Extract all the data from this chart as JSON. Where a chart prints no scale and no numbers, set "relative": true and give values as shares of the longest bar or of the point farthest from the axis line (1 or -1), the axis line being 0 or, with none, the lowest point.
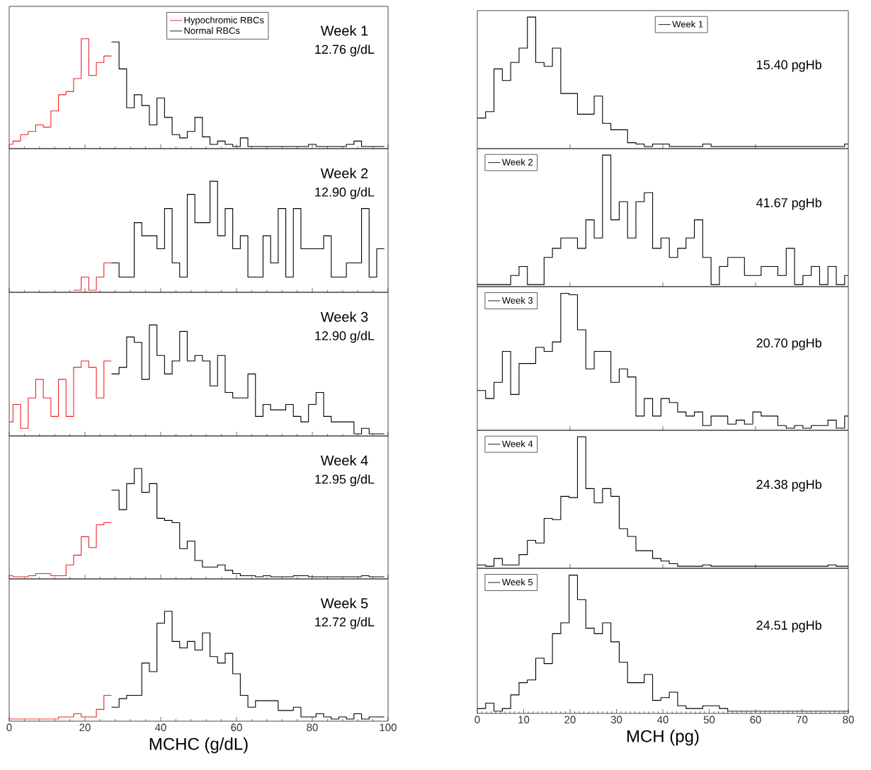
{
  "chart_data": [
    {
      "type": "step",
      "relative": true,
      "series": [
        {
          "name": "Hypochromic RBCs",
          "color": "#ee2222",
          "x": [
            0,
            1,
            3,
            5,
            7,
            9,
            11,
            13,
            15,
            17,
            19,
            21,
            23,
            25,
            27
          ],
          "values": [
            0.02,
            0.05,
            0.11,
            0.14,
            0.2,
            0.18,
            0.33,
            0.48,
            0.51,
            0.63,
            1,
            0.66,
            0.78,
            0.84,
            0.84
          ]
        },
        {
          "name": "Normal RBCs",
          "color": "#000000",
          "x": [
            27,
            29,
            31,
            33,
            35,
            37,
            39,
            41,
            43,
            45,
            47,
            49,
            51,
            53,
            55,
            57,
            59,
            61,
            63,
            65,
            67,
            69,
            71,
            73,
            75,
            77,
            79,
            81,
            83,
            85,
            87,
            89,
            91,
            93,
            95,
            97,
            99
          ],
          "values": [
            0.97,
            0.72,
            0.36,
            0.48,
            0.38,
            0.2,
            0.45,
            0.27,
            0.11,
            0.08,
            0.14,
            0.27,
            0.09,
            0.02,
            0.05,
            0.02,
            0,
            0.08,
            0,
            0,
            0,
            0,
            0,
            0,
            0,
            0,
            0.02,
            0,
            0,
            0,
            0,
            0.02,
            0.05,
            0,
            0,
            0,
            0
          ]
        }
      ],
      "legend": "top",
      "xlim": [
        0,
        100
      ],
      "xticks": [
        0,
        {
          "value": 4,
          "label": null
        },
        {
          "value": 8,
          "label": null
        },
        {
          "value": 12,
          "label": null
        },
        {
          "value": 16,
          "label": null
        },
        20,
        {
          "value": 24,
          "label": null
        },
        {
          "value": 28,
          "label": null
        },
        {
          "value": 32,
          "label": null
        },
        {
          "value": 36,
          "label": null
        },
        40,
        {
          "value": 44,
          "label": null
        },
        {
          "value": 48,
          "label": null
        },
        {
          "value": 52,
          "label": null
        },
        {
          "value": 56,
          "label": null
        },
        60,
        {
          "value": 64,
          "label": null
        },
        {
          "value": 68,
          "label": null
        },
        {
          "value": 72,
          "label": null
        },
        {
          "value": 76,
          "label": null
        },
        80,
        {
          "value": 84,
          "label": null
        },
        {
          "value": 88,
          "label": null
        },
        {
          "value": 92,
          "label": null
        },
        {
          "value": 96,
          "label": null
        },
        100
      ],
      "tick_labels": false,
      "annotations": [
        "Week 1",
        "12.76 g/dL"
      ]
    },
    {
      "type": "step",
      "relative": true,
      "series": [
        {
          "name": "Week 1",
          "color": "#000000",
          "x": [
            0,
            1.8,
            3.6,
            5.4,
            7.2,
            9,
            10.8,
            12.6,
            14.4,
            16.2,
            18,
            19.8,
            21.6,
            23.4,
            25.2,
            27,
            28.8,
            30.6,
            32.4,
            34.2,
            36,
            37.8,
            39.6,
            41.4,
            43.2,
            45,
            46.8,
            48.6,
            50.4,
            52.2,
            54,
            55.8,
            57.6,
            59.4,
            61.2,
            63,
            64.8,
            66.6,
            68.4,
            70.2,
            72,
            73.8,
            75.6,
            77.4,
            79.2,
            80
          ],
          "values": [
            0.22,
            0.27,
            0.6,
            0.51,
            0.65,
            0.76,
            1,
            0.65,
            0.62,
            0.76,
            0.41,
            0.41,
            0.25,
            0.25,
            0.39,
            0.18,
            0.13,
            0.13,
            0.03,
            0.02,
            0,
            0.02,
            0.02,
            0,
            0,
            0,
            0,
            0.02,
            0,
            0,
            0,
            0,
            0,
            0,
            0,
            0,
            0,
            0,
            0,
            0,
            0,
            0,
            0,
            0,
            0.02,
            0.02
          ]
        }
      ],
      "legend": "top",
      "xlim": [
        0,
        80
      ],
      "xticks": [
        20,
        40,
        60
      ],
      "tick_labels": false,
      "annotations": [
        "15.40 pgHb"
      ]
    },
    {
      "type": "step",
      "relative": true,
      "series": [
        {
          "color": "#ee2222",
          "x": [
            17,
            19,
            21,
            23,
            25,
            27
          ],
          "values": [
            0,
            0.12,
            0,
            0.12,
            0.25,
            0.25
          ]
        },
        {
          "color": "#000000",
          "x": [
            27,
            29,
            31,
            33,
            35,
            37,
            39,
            41,
            43,
            45,
            47,
            49,
            51,
            53,
            55,
            57,
            59,
            61,
            63,
            65,
            67,
            69,
            71,
            73,
            75,
            77,
            79,
            81,
            83,
            85,
            87,
            89,
            91,
            93,
            95,
            97,
            99
          ],
          "values": [
            0.25,
            0.12,
            0.12,
            0.62,
            0.5,
            0.5,
            0.38,
            0.75,
            0.25,
            0.12,
            0.88,
            0.62,
            0.62,
            1,
            0.5,
            0.75,
            0.38,
            0.5,
            0.12,
            0.12,
            0.5,
            0.25,
            0.75,
            0.12,
            0.75,
            0.38,
            0.38,
            0.38,
            0.5,
            0.12,
            0.12,
            0.25,
            0.25,
            0.75,
            0.12,
            0.38,
            0.38
          ]
        }
      ],
      "xlim": [
        0,
        100
      ],
      "xticks": [
        0,
        {
          "value": 4,
          "label": null
        },
        {
          "value": 8,
          "label": null
        },
        {
          "value": 12,
          "label": null
        },
        {
          "value": 16,
          "label": null
        },
        20,
        {
          "value": 24,
          "label": null
        },
        {
          "value": 28,
          "label": null
        },
        {
          "value": 32,
          "label": null
        },
        {
          "value": 36,
          "label": null
        },
        40,
        {
          "value": 44,
          "label": null
        },
        {
          "value": 48,
          "label": null
        },
        {
          "value": 52,
          "label": null
        },
        {
          "value": 56,
          "label": null
        },
        60,
        {
          "value": 64,
          "label": null
        },
        {
          "value": 68,
          "label": null
        },
        {
          "value": 72,
          "label": null
        },
        {
          "value": 76,
          "label": null
        },
        80,
        {
          "value": 84,
          "label": null
        },
        {
          "value": 88,
          "label": null
        },
        {
          "value": 92,
          "label": null
        },
        {
          "value": 96,
          "label": null
        },
        100
      ],
      "tick_labels": false,
      "annotations": [
        "Week 2",
        "12.90 g/dL"
      ]
    },
    {
      "type": "step",
      "relative": true,
      "series": [
        {
          "name": "Week 2",
          "color": "#000000",
          "x": [
            0,
            1.8,
            3.6,
            5.4,
            7.2,
            9,
            10.8,
            12.6,
            14.4,
            16.2,
            18,
            19.8,
            21.6,
            23.4,
            25.2,
            27,
            28.8,
            30.6,
            32.4,
            34.2,
            36,
            37.8,
            39.6,
            41.4,
            43.2,
            45,
            46.8,
            48.6,
            50.4,
            52.2,
            54,
            55.8,
            57.6,
            59.4,
            61.2,
            63,
            64.8,
            66.6,
            68.4,
            70.2,
            72,
            73.8,
            75.6,
            77.4,
            79.2,
            80
          ],
          "values": [
            0,
            0,
            0,
            0,
            0.07,
            0.14,
            0,
            0,
            0.21,
            0.28,
            0.36,
            0.36,
            0.28,
            0.5,
            0.36,
            1,
            0.5,
            0.64,
            0.36,
            0.64,
            0.71,
            0.28,
            0.36,
            0.21,
            0.28,
            0.36,
            0.5,
            0.21,
            0,
            0.14,
            0.21,
            0.21,
            0.07,
            0.07,
            0.14,
            0.14,
            0.07,
            0.28,
            0,
            0.07,
            0.14,
            0,
            0.14,
            0,
            0.07,
            0.07
          ]
        }
      ],
      "legend": "top left",
      "xlim": [
        0,
        80
      ],
      "xticks": [
        20,
        40,
        60
      ],
      "tick_labels": false,
      "annotations": [
        "41.67 pgHb"
      ]
    },
    {
      "type": "step",
      "relative": true,
      "series": [
        {
          "color": "#ee2222",
          "x": [
            0,
            1,
            3,
            5,
            7,
            9,
            11,
            13,
            15,
            17,
            19,
            21,
            23,
            25,
            27
          ],
          "values": [
            0.11,
            0.27,
            0.05,
            0.33,
            0.5,
            0.33,
            0.16,
            0.5,
            0.16,
            0.61,
            0.67,
            0.61,
            0.33,
            0.67,
            0.67
          ]
        },
        {
          "color": "#000000",
          "x": [
            27,
            29,
            31,
            33,
            35,
            37,
            39,
            41,
            43,
            45,
            47,
            49,
            51,
            53,
            55,
            57,
            59,
            61,
            63,
            65,
            67,
            69,
            71,
            73,
            75,
            77,
            79,
            81,
            83,
            85,
            87,
            89,
            91,
            93,
            95,
            97,
            99
          ],
          "values": [
            0.55,
            0.61,
            0.89,
            0.84,
            0.5,
            1,
            0.72,
            0.55,
            0.67,
            0.94,
            0.67,
            0.72,
            0.67,
            0.44,
            0.72,
            0.38,
            0.33,
            0.33,
            0.55,
            0.16,
            0.27,
            0.22,
            0.22,
            0.27,
            0.16,
            0.11,
            0.27,
            0.38,
            0.16,
            0.11,
            0.11,
            0.11,
            0,
            0.05,
            0,
            0,
            0
          ]
        }
      ],
      "xlim": [
        0,
        100
      ],
      "xticks": [
        0,
        {
          "value": 4,
          "label": null
        },
        {
          "value": 8,
          "label": null
        },
        {
          "value": 12,
          "label": null
        },
        {
          "value": 16,
          "label": null
        },
        20,
        {
          "value": 24,
          "label": null
        },
        {
          "value": 28,
          "label": null
        },
        {
          "value": 32,
          "label": null
        },
        {
          "value": 36,
          "label": null
        },
        40,
        {
          "value": 44,
          "label": null
        },
        {
          "value": 48,
          "label": null
        },
        {
          "value": 52,
          "label": null
        },
        {
          "value": 56,
          "label": null
        },
        60,
        {
          "value": 64,
          "label": null
        },
        {
          "value": 68,
          "label": null
        },
        {
          "value": 72,
          "label": null
        },
        {
          "value": 76,
          "label": null
        },
        80,
        {
          "value": 84,
          "label": null
        },
        {
          "value": 88,
          "label": null
        },
        {
          "value": 92,
          "label": null
        },
        {
          "value": 96,
          "label": null
        },
        100
      ],
      "tick_labels": false,
      "annotations": [
        "Week 3",
        "12.90 g/dL"
      ]
    },
    {
      "type": "step",
      "relative": true,
      "series": [
        {
          "name": "Week 3",
          "color": "#000000",
          "x": [
            0,
            1.8,
            3.6,
            5.4,
            7.2,
            9,
            10.8,
            12.6,
            14.4,
            16.2,
            18,
            19.8,
            21.6,
            23.4,
            25.2,
            27,
            28.8,
            30.6,
            32.4,
            34.2,
            36,
            37.8,
            39.6,
            41.4,
            43.2,
            45,
            46.8,
            48.6,
            50.4,
            52.2,
            54,
            55.8,
            57.6,
            59.4,
            61.2,
            63,
            64.8,
            66.6,
            68.4,
            70.2,
            72,
            73.8,
            75.6,
            77.4,
            79.2,
            80
          ],
          "values": [
            0.28,
            0.22,
            0.34,
            0.57,
            0.25,
            0.48,
            0.48,
            0.6,
            0.57,
            0.64,
            1,
            0.99,
            0.73,
            0.44,
            0.57,
            0.57,
            0.34,
            0.44,
            0.38,
            0.09,
            0.22,
            0.09,
            0.22,
            0.19,
            0.12,
            0.09,
            0.12,
            0.02,
            0.09,
            0.09,
            0.03,
            0.06,
            0.03,
            0.12,
            0.09,
            0.09,
            0.02,
            0,
            0.02,
            0,
            0.02,
            0.02,
            0.06,
            0,
            0.09,
            0.09
          ]
        }
      ],
      "legend": "top left",
      "xlim": [
        0,
        80
      ],
      "xticks": [
        20,
        40,
        60
      ],
      "tick_labels": false,
      "annotations": [
        "20.70 pgHb"
      ]
    },
    {
      "type": "step",
      "relative": true,
      "series": [
        {
          "color": "#ee2222",
          "x": [
            0,
            1,
            3,
            5,
            7,
            9,
            11,
            13,
            15,
            17,
            19,
            21,
            23,
            25,
            27
          ],
          "values": [
            0.01,
            0,
            0,
            0.01,
            0.03,
            0.03,
            0.01,
            0.01,
            0.11,
            0.2,
            0.37,
            0.27,
            0.48,
            0.5,
            0.5
          ]
        },
        {
          "color": "#000000",
          "x": [
            27,
            29,
            31,
            33,
            35,
            37,
            39,
            41,
            43,
            45,
            47,
            49,
            51,
            53,
            55,
            57,
            59,
            61,
            63,
            65,
            67,
            69,
            71,
            73,
            75,
            77,
            79,
            81,
            83,
            85,
            87,
            89,
            91,
            93,
            95,
            97,
            99
          ],
          "values": [
            0.8,
            0.62,
            0.86,
            1,
            0.78,
            0.86,
            0.54,
            0.52,
            0.5,
            0.26,
            0.33,
            0.15,
            0.09,
            0.09,
            0.11,
            0.06,
            0.03,
            0.01,
            0.01,
            0,
            0.01,
            0,
            0,
            0,
            0.01,
            0.01,
            0,
            0,
            0,
            0,
            0,
            0,
            0,
            0.01,
            0,
            0,
            0
          ]
        }
      ],
      "xlim": [
        0,
        100
      ],
      "xticks": [
        0,
        {
          "value": 4,
          "label": null
        },
        {
          "value": 8,
          "label": null
        },
        {
          "value": 12,
          "label": null
        },
        {
          "value": 16,
          "label": null
        },
        20,
        {
          "value": 24,
          "label": null
        },
        {
          "value": 28,
          "label": null
        },
        {
          "value": 32,
          "label": null
        },
        {
          "value": 36,
          "label": null
        },
        40,
        {
          "value": 44,
          "label": null
        },
        {
          "value": 48,
          "label": null
        },
        {
          "value": 52,
          "label": null
        },
        {
          "value": 56,
          "label": null
        },
        60,
        {
          "value": 64,
          "label": null
        },
        {
          "value": 68,
          "label": null
        },
        {
          "value": 72,
          "label": null
        },
        {
          "value": 76,
          "label": null
        },
        80,
        {
          "value": 84,
          "label": null
        },
        {
          "value": 88,
          "label": null
        },
        {
          "value": 92,
          "label": null
        },
        {
          "value": 96,
          "label": null
        },
        100
      ],
      "tick_labels": false,
      "annotations": [
        "Week 4",
        "12.95 g/dL"
      ]
    },
    {
      "type": "step",
      "relative": true,
      "series": [
        {
          "name": "Week 4",
          "color": "#000000",
          "x": [
            0,
            1.8,
            3.6,
            5.4,
            7.2,
            9,
            10.8,
            12.6,
            14.4,
            16.2,
            18,
            19.8,
            21.6,
            23.4,
            25.2,
            27,
            28.8,
            30.6,
            32.4,
            34.2,
            36,
            37.8,
            39.6,
            41.4,
            43.2,
            45,
            46.8,
            48.6,
            50.4,
            52.2,
            54,
            55.8,
            57.6,
            59.4,
            61.2,
            63,
            64.8,
            66.6,
            68.4,
            70.2,
            72,
            73.8,
            75.6,
            77.4,
            79.2,
            80
          ],
          "values": [
            0.01,
            0,
            0.06,
            0.01,
            0.01,
            0.09,
            0.2,
            0.18,
            0.37,
            0.36,
            0.54,
            0.53,
            1,
            0.6,
            0.49,
            0.6,
            0.54,
            0.29,
            0.23,
            0.12,
            0.12,
            0.06,
            0.04,
            0.02,
            0,
            0,
            0,
            0.01,
            0,
            0,
            0,
            0,
            0,
            0,
            0,
            0,
            0,
            0,
            0,
            0,
            0,
            0,
            0.01,
            0,
            0,
            0
          ]
        }
      ],
      "legend": "top left",
      "xlim": [
        0,
        80
      ],
      "xticks": [
        20,
        40,
        60
      ],
      "tick_labels": false,
      "annotations": [
        "24.38 pgHb"
      ]
    },
    {
      "type": "step",
      "relative": true,
      "series": [
        {
          "color": "#ee2222",
          "x": [
            0,
            1,
            3,
            5,
            7,
            9,
            11,
            13,
            15,
            17,
            19,
            21,
            23,
            25,
            27
          ],
          "values": [
            0,
            0,
            0,
            0,
            0,
            0,
            0,
            0.02,
            0.02,
            0.05,
            0.02,
            0.02,
            0.09,
            0.22,
            0.22
          ]
        },
        {
          "color": "#000000",
          "x": [
            27,
            29,
            31,
            33,
            35,
            37,
            39,
            41,
            43,
            45,
            47,
            49,
            51,
            53,
            55,
            57,
            59,
            61,
            63,
            65,
            67,
            69,
            71,
            73,
            75,
            77,
            79,
            81,
            83,
            85,
            87,
            89,
            91,
            93,
            95,
            97,
            99
          ],
          "values": [
            0.11,
            0.19,
            0.22,
            0.22,
            0.52,
            0.44,
            0.89,
            1,
            0.72,
            0.66,
            0.72,
            0.64,
            0.8,
            0.58,
            0.52,
            0.61,
            0.42,
            0.22,
            0.11,
            0.17,
            0.17,
            0.17,
            0.08,
            0.08,
            0.11,
            0.02,
            0.02,
            0.05,
            0.02,
            0,
            0.02,
            0,
            0.05,
            0,
            0.02,
            0.02,
            0.02
          ]
        }
      ],
      "xlim": [
        0,
        100
      ],
      "xticks": [
        0,
        {
          "value": 4,
          "label": null
        },
        {
          "value": 8,
          "label": null
        },
        {
          "value": 12,
          "label": null
        },
        {
          "value": 16,
          "label": null
        },
        20,
        {
          "value": 24,
          "label": null
        },
        {
          "value": 28,
          "label": null
        },
        {
          "value": 32,
          "label": null
        },
        {
          "value": 36,
          "label": null
        },
        40,
        {
          "value": 44,
          "label": null
        },
        {
          "value": 48,
          "label": null
        },
        {
          "value": 52,
          "label": null
        },
        {
          "value": 56,
          "label": null
        },
        60,
        {
          "value": 64,
          "label": null
        },
        {
          "value": 68,
          "label": null
        },
        {
          "value": 72,
          "label": null
        },
        {
          "value": 76,
          "label": null
        },
        80,
        {
          "value": 84,
          "label": null
        },
        {
          "value": 88,
          "label": null
        },
        {
          "value": 92,
          "label": null
        },
        {
          "value": 96,
          "label": null
        },
        100
      ],
      "tick_labels": "x",
      "xlabel": "MCHC (g/dL)",
      "annotations": [
        "Week 5",
        "12.72 g/dL"
      ]
    },
    {
      "type": "step",
      "relative": true,
      "series": [
        {
          "name": "Week 5",
          "color": "#000000",
          "x": [
            0,
            1.8,
            3.6,
            5.4,
            7.2,
            9,
            10.8,
            12.6,
            14.4,
            16.2,
            18,
            19.8,
            21.6,
            23.4,
            25.2,
            27,
            28.8,
            30.6,
            32.4,
            34.2,
            36,
            37.8,
            39.6,
            41.4,
            43.2,
            45,
            46.8,
            48.6,
            50.4,
            52.2,
            54,
            55.8,
            57.6,
            59.4,
            61.2,
            63,
            64.8,
            66.6,
            68.4,
            70.2,
            72,
            73.8,
            75.6,
            77.4,
            79.2,
            80
          ],
          "values": [
            0.02,
            0.06,
            0,
            0.02,
            0.12,
            0.21,
            0.23,
            0.39,
            0.35,
            0.57,
            0.65,
            1,
            0.82,
            0.61,
            0.57,
            0.65,
            0.51,
            0.36,
            0.21,
            0.21,
            0.27,
            0.08,
            0.1,
            0.14,
            0.04,
            0.02,
            0.02,
            0.04,
            0.04,
            0.02,
            0,
            0,
            0,
            0,
            0,
            0,
            0,
            0,
            0,
            0,
            0,
            0,
            0,
            0,
            0,
            0
          ]
        }
      ],
      "legend": "top left",
      "xlim": [
        0,
        80
      ],
      "xticks": [
        0,
        {
          "value": 1,
          "label": null
        },
        {
          "value": 2,
          "label": null
        },
        {
          "value": 3,
          "label": null
        },
        {
          "value": 4,
          "label": null
        },
        {
          "value": 5,
          "label": null
        },
        {
          "value": 6,
          "label": null
        },
        {
          "value": 7,
          "label": null
        },
        {
          "value": 8,
          "label": null
        },
        {
          "value": 9,
          "label": null
        },
        10,
        {
          "value": 11,
          "label": null
        },
        {
          "value": 12,
          "label": null
        },
        {
          "value": 13,
          "label": null
        },
        {
          "value": 14,
          "label": null
        },
        {
          "value": 15,
          "label": null
        },
        {
          "value": 16,
          "label": null
        },
        {
          "value": 17,
          "label": null
        },
        {
          "value": 18,
          "label": null
        },
        {
          "value": 19,
          "label": null
        },
        20,
        {
          "value": 21,
          "label": null
        },
        {
          "value": 22,
          "label": null
        },
        {
          "value": 23,
          "label": null
        },
        {
          "value": 24,
          "label": null
        },
        {
          "value": 25,
          "label": null
        },
        {
          "value": 26,
          "label": null
        },
        {
          "value": 27,
          "label": null
        },
        {
          "value": 28,
          "label": null
        },
        {
          "value": 29,
          "label": null
        },
        30,
        {
          "value": 31,
          "label": null
        },
        {
          "value": 32,
          "label": null
        },
        {
          "value": 33,
          "label": null
        },
        {
          "value": 34,
          "label": null
        },
        {
          "value": 35,
          "label": null
        },
        {
          "value": 36,
          "label": null
        },
        {
          "value": 37,
          "label": null
        },
        {
          "value": 38,
          "label": null
        },
        {
          "value": 39,
          "label": null
        },
        40,
        {
          "value": 41,
          "label": null
        },
        {
          "value": 42,
          "label": null
        },
        {
          "value": 43,
          "label": null
        },
        {
          "value": 44,
          "label": null
        },
        {
          "value": 45,
          "label": null
        },
        {
          "value": 46,
          "label": null
        },
        {
          "value": 47,
          "label": null
        },
        {
          "value": 48,
          "label": null
        },
        {
          "value": 49,
          "label": null
        },
        50,
        {
          "value": 51,
          "label": null
        },
        {
          "value": 52,
          "label": null
        },
        {
          "value": 53,
          "label": null
        },
        {
          "value": 54,
          "label": null
        },
        {
          "value": 55,
          "label": null
        },
        {
          "value": 56,
          "label": null
        },
        {
          "value": 57,
          "label": null
        },
        {
          "value": 58,
          "label": null
        },
        {
          "value": 59,
          "label": null
        },
        60,
        {
          "value": 61,
          "label": null
        },
        {
          "value": 62,
          "label": null
        },
        {
          "value": 63,
          "label": null
        },
        {
          "value": 64,
          "label": null
        },
        {
          "value": 65,
          "label": null
        },
        {
          "value": 66,
          "label": null
        },
        {
          "value": 67,
          "label": null
        },
        {
          "value": 68,
          "label": null
        },
        {
          "value": 69,
          "label": null
        },
        70,
        {
          "value": 71,
          "label": null
        },
        {
          "value": 72,
          "label": null
        },
        {
          "value": 73,
          "label": null
        },
        {
          "value": 74,
          "label": null
        },
        {
          "value": 75,
          "label": null
        },
        {
          "value": 76,
          "label": null
        },
        {
          "value": 77,
          "label": null
        },
        {
          "value": 78,
          "label": null
        },
        {
          "value": 79,
          "label": null
        },
        80
      ],
      "tick_labels": "x",
      "xlabel": "MCH (pg)",
      "annotations": [
        "24.51 pgHb"
      ]
    }
  ]
}
